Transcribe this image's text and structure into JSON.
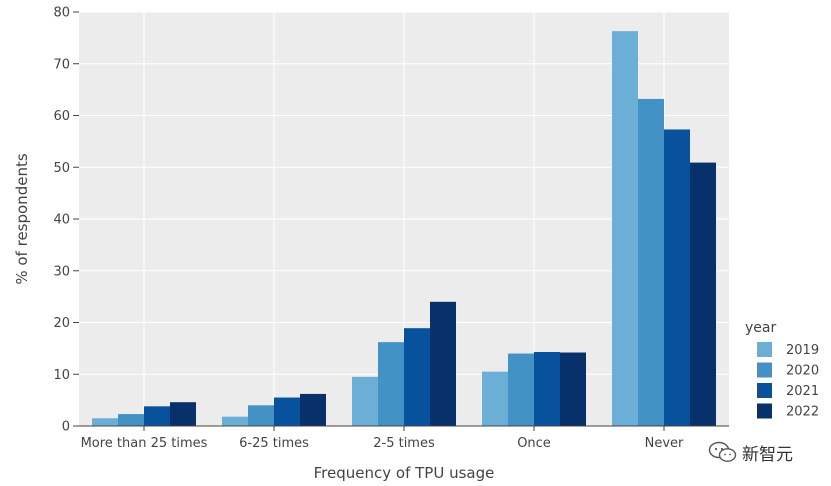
{
  "chart_data": {
    "type": "bar",
    "title": "",
    "xlabel": "Frequency of TPU usage",
    "ylabel": "% of respondents",
    "ylim": [
      0,
      80
    ],
    "yticks": [
      0,
      10,
      20,
      30,
      40,
      50,
      60,
      70,
      80
    ],
    "grid": true,
    "legend_title": "year",
    "legend_position": "right",
    "categories": [
      "More than 25 times",
      "6-25 times",
      "2-5 times",
      "Once",
      "Never"
    ],
    "series": [
      {
        "name": "2019",
        "color": "#6baed6",
        "values": [
          1.5,
          1.8,
          9.5,
          10.5,
          76.3
        ]
      },
      {
        "name": "2020",
        "color": "#4292c6",
        "values": [
          2.3,
          4.0,
          16.2,
          14.0,
          63.2
        ]
      },
      {
        "name": "2021",
        "color": "#08519c",
        "values": [
          3.8,
          5.5,
          18.9,
          14.3,
          57.3
        ]
      },
      {
        "name": "2022",
        "color": "#08306b",
        "values": [
          4.6,
          6.2,
          24.0,
          14.2,
          50.9
        ]
      }
    ]
  },
  "watermark": {
    "text": "新智元",
    "icon": "wechat-icon"
  }
}
